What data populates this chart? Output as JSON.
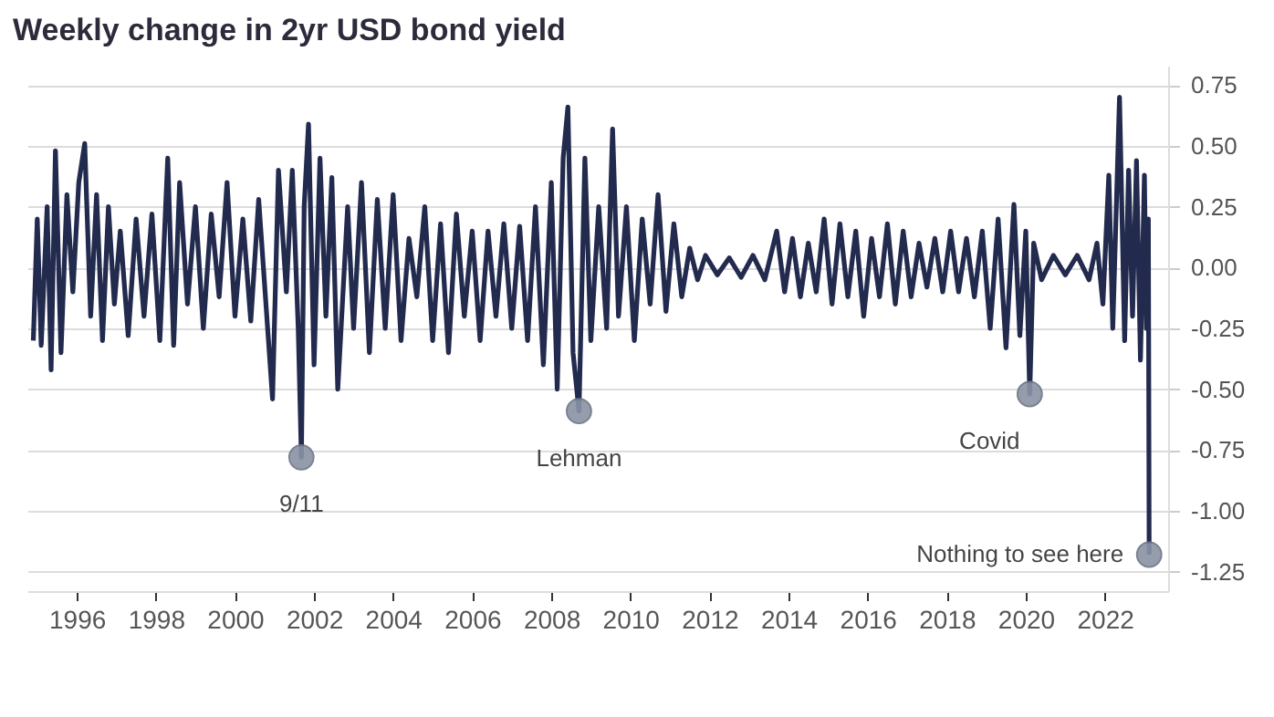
{
  "chart_data": {
    "type": "line",
    "title": "Weekly change in 2yr USD bond yield",
    "x": [
      1994.9,
      1995.0,
      1995.1,
      1995.25,
      1995.35,
      1995.46,
      1995.6,
      1995.75,
      1995.9,
      1996.05,
      1996.2,
      1996.35,
      1996.5,
      1996.65,
      1996.8,
      1996.95,
      1997.1,
      1997.3,
      1997.5,
      1997.7,
      1997.9,
      1998.1,
      1998.3,
      1998.45,
      1998.6,
      1998.8,
      1999.0,
      1999.2,
      1999.4,
      1999.6,
      1999.8,
      2000.0,
      2000.2,
      2000.4,
      2000.6,
      2000.95,
      2001.1,
      2001.3,
      2001.45,
      2001.6,
      2001.68,
      2001.75,
      2001.86,
      2002.0,
      2002.15,
      2002.3,
      2002.45,
      2002.6,
      2002.85,
      2003.0,
      2003.2,
      2003.4,
      2003.6,
      2003.8,
      2004.0,
      2004.2,
      2004.4,
      2004.6,
      2004.8,
      2005.0,
      2005.2,
      2005.4,
      2005.6,
      2005.8,
      2006.0,
      2006.2,
      2006.4,
      2006.6,
      2006.8,
      2007.0,
      2007.2,
      2007.4,
      2007.6,
      2007.8,
      2008.0,
      2008.15,
      2008.3,
      2008.42,
      2008.55,
      2008.7,
      2008.85,
      2009.0,
      2009.2,
      2009.4,
      2009.55,
      2009.7,
      2009.9,
      2010.1,
      2010.3,
      2010.5,
      2010.7,
      2010.9,
      2011.1,
      2011.3,
      2011.5,
      2011.7,
      2011.9,
      2012.2,
      2012.5,
      2012.8,
      2013.1,
      2013.4,
      2013.7,
      2013.9,
      2014.1,
      2014.3,
      2014.5,
      2014.7,
      2014.9,
      2015.1,
      2015.3,
      2015.5,
      2015.7,
      2015.9,
      2016.1,
      2016.3,
      2016.5,
      2016.7,
      2016.9,
      2017.1,
      2017.3,
      2017.5,
      2017.7,
      2017.9,
      2018.1,
      2018.3,
      2018.5,
      2018.7,
      2018.9,
      2019.1,
      2019.3,
      2019.5,
      2019.7,
      2019.85,
      2020.0,
      2020.1,
      2020.2,
      2020.4,
      2020.7,
      2021.0,
      2021.3,
      2021.6,
      2021.8,
      2021.95,
      2022.1,
      2022.2,
      2022.37,
      2022.5,
      2022.6,
      2022.7,
      2022.8,
      2022.9,
      2023.0,
      2023.05,
      2023.1,
      2023.12
    ],
    "series": [
      {
        "color": "#222a4e",
        "values": [
          -0.3,
          0.2,
          -0.32,
          0.25,
          -0.42,
          0.48,
          -0.35,
          0.3,
          -0.1,
          0.35,
          0.51,
          -0.2,
          0.3,
          -0.3,
          0.25,
          -0.15,
          0.15,
          -0.28,
          0.2,
          -0.2,
          0.22,
          -0.3,
          0.45,
          -0.32,
          0.35,
          -0.15,
          0.25,
          -0.25,
          0.22,
          -0.12,
          0.35,
          -0.2,
          0.2,
          -0.22,
          0.28,
          -0.54,
          0.4,
          -0.1,
          0.4,
          -0.25,
          -0.78,
          0.25,
          0.59,
          -0.4,
          0.45,
          -0.2,
          0.37,
          -0.5,
          0.25,
          -0.25,
          0.35,
          -0.35,
          0.28,
          -0.25,
          0.3,
          -0.3,
          0.12,
          -0.12,
          0.25,
          -0.3,
          0.18,
          -0.35,
          0.22,
          -0.2,
          0.15,
          -0.3,
          0.15,
          -0.2,
          0.18,
          -0.25,
          0.17,
          -0.3,
          0.25,
          -0.4,
          0.35,
          -0.5,
          0.45,
          0.66,
          -0.35,
          -0.59,
          0.45,
          -0.3,
          0.25,
          -0.25,
          0.57,
          -0.2,
          0.25,
          -0.3,
          0.2,
          -0.15,
          0.3,
          -0.18,
          0.18,
          -0.12,
          0.08,
          -0.05,
          0.05,
          -0.03,
          0.04,
          -0.04,
          0.05,
          -0.05,
          0.15,
          -0.1,
          0.12,
          -0.12,
          0.1,
          -0.1,
          0.2,
          -0.15,
          0.18,
          -0.12,
          0.15,
          -0.2,
          0.12,
          -0.12,
          0.18,
          -0.15,
          0.15,
          -0.12,
          0.1,
          -0.08,
          0.12,
          -0.1,
          0.15,
          -0.1,
          0.12,
          -0.12,
          0.15,
          -0.25,
          0.2,
          -0.33,
          0.26,
          -0.28,
          0.15,
          -0.52,
          0.1,
          -0.05,
          0.05,
          -0.03,
          0.05,
          -0.05,
          0.1,
          -0.15,
          0.38,
          -0.25,
          0.7,
          -0.3,
          0.4,
          -0.2,
          0.44,
          -0.38,
          0.38,
          -0.25,
          0.2,
          -1.18
        ]
      }
    ],
    "xlim": [
      1994.75,
      2023.6
    ],
    "xticks": [
      1996,
      1998,
      2000,
      2002,
      2004,
      2006,
      2008,
      2010,
      2012,
      2014,
      2016,
      2018,
      2020,
      2022
    ],
    "ylim": [
      -1.33,
      0.83
    ],
    "yticks": [
      {
        "value": 0.75,
        "label": "0.75"
      },
      {
        "value": 0.5,
        "label": "0.50"
      },
      {
        "value": 0.25,
        "label": "0.25"
      },
      {
        "value": 0,
        "label": "0.00"
      },
      {
        "value": -0.25,
        "label": "-0.25"
      },
      {
        "value": -0.5,
        "label": "-0.50"
      },
      {
        "value": -0.75,
        "label": "-0.75"
      },
      {
        "value": -1,
        "label": "-1.00"
      },
      {
        "value": -1.25,
        "label": "-1.25"
      }
    ],
    "grid": "y",
    "marker": "none",
    "line_style": "solid",
    "annotations": [
      {
        "text": "9/11",
        "x": 2001.68,
        "y": -0.78
      },
      {
        "text": "Lehman",
        "x": 2008.7,
        "y": -0.59
      },
      {
        "text": "Covid",
        "x": 2020.1,
        "y": -0.52
      },
      {
        "text": "Nothing to see here",
        "x": 2023.12,
        "y": -1.18
      }
    ]
  }
}
